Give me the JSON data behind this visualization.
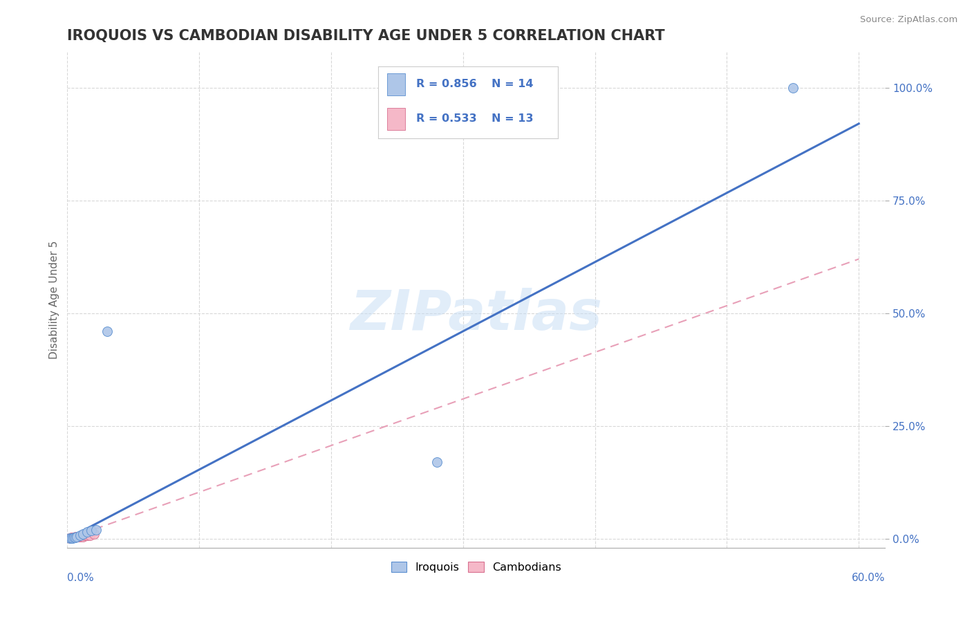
{
  "title": "IROQUOIS VS CAMBODIAN DISABILITY AGE UNDER 5 CORRELATION CHART",
  "source": "Source: ZipAtlas.com",
  "ylabel": "Disability Age Under 5",
  "x_label_bottom_left": "0.0%",
  "x_label_bottom_right": "60.0%",
  "xlim": [
    0.0,
    0.62
  ],
  "ylim": [
    -0.02,
    1.08
  ],
  "y_ticks": [
    0.0,
    0.25,
    0.5,
    0.75,
    1.0
  ],
  "y_tick_labels": [
    "0.0%",
    "25.0%",
    "50.0%",
    "75.0%",
    "100.0%"
  ],
  "iroquois_points": [
    [
      0.002,
      0.002
    ],
    [
      0.003,
      0.002
    ],
    [
      0.004,
      0.002
    ],
    [
      0.005,
      0.003
    ],
    [
      0.006,
      0.003
    ],
    [
      0.007,
      0.005
    ],
    [
      0.01,
      0.007
    ],
    [
      0.012,
      0.01
    ],
    [
      0.015,
      0.015
    ],
    [
      0.018,
      0.018
    ],
    [
      0.022,
      0.02
    ],
    [
      0.03,
      0.46
    ],
    [
      0.28,
      0.17
    ],
    [
      0.55,
      1.0
    ]
  ],
  "cambodian_points": [
    [
      0.002,
      0.002
    ],
    [
      0.003,
      0.003
    ],
    [
      0.004,
      0.003
    ],
    [
      0.005,
      0.003
    ],
    [
      0.006,
      0.005
    ],
    [
      0.007,
      0.005
    ],
    [
      0.008,
      0.005
    ],
    [
      0.01,
      0.005
    ],
    [
      0.012,
      0.005
    ],
    [
      0.013,
      0.007
    ],
    [
      0.015,
      0.007
    ],
    [
      0.017,
      0.008
    ],
    [
      0.02,
      0.01
    ]
  ],
  "iroquois_line_x": [
    0.0,
    0.6
  ],
  "iroquois_line_y": [
    0.0,
    0.92
  ],
  "cambodian_line_x": [
    0.0,
    0.6
  ],
  "cambodian_line_y": [
    0.0,
    0.62
  ],
  "iroquois_R": 0.856,
  "iroquois_N": 14,
  "cambodian_R": 0.533,
  "cambodian_N": 13,
  "iroquois_color": "#aec6e8",
  "cambodian_color": "#f5b8c8",
  "iroquois_line_color": "#4472c4",
  "cambodian_line_color": "#e8a0b8",
  "iroquois_edge_color": "#5a8fd0",
  "cambodian_edge_color": "#d87090",
  "watermark": "ZIPatlas",
  "background_color": "#ffffff",
  "grid_color": "#d8d8d8",
  "title_color": "#333333",
  "axis_color": "#4472c4"
}
